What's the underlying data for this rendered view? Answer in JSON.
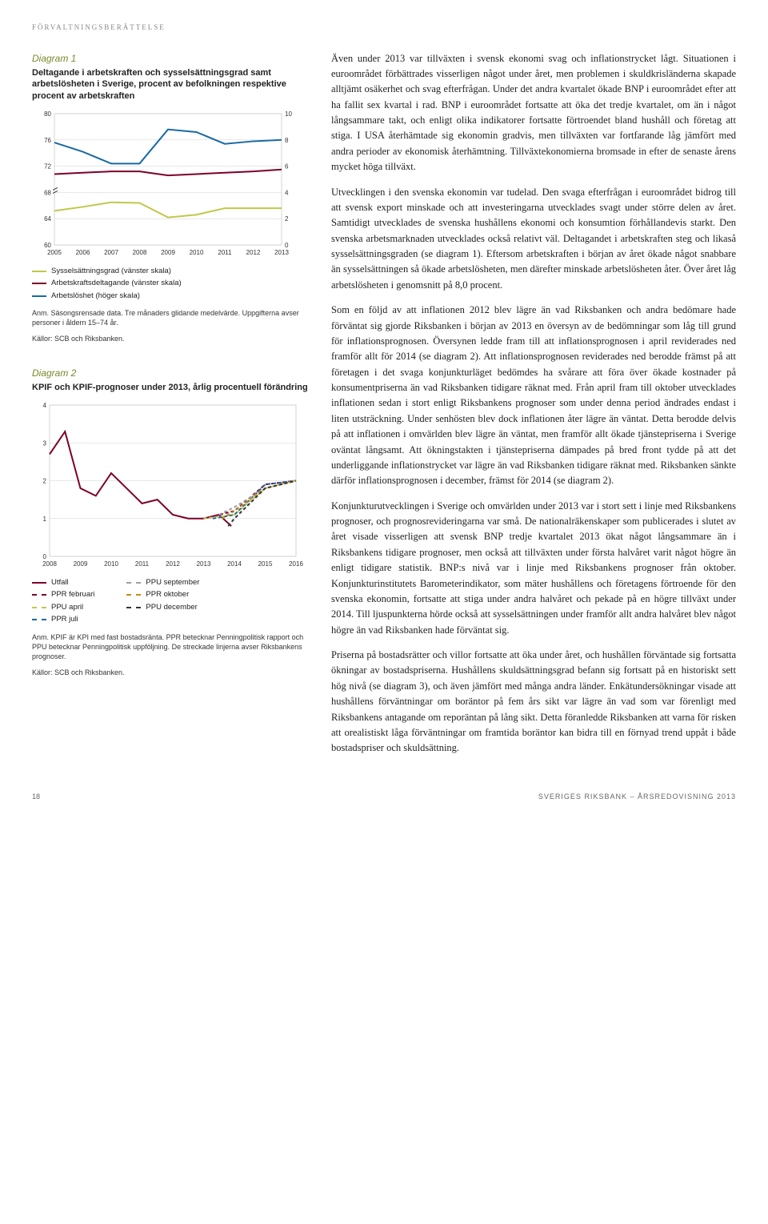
{
  "running_head": "FÖRVALTNINGSBERÄTTELSE",
  "diagram1": {
    "label": "Diagram 1",
    "title": "Deltagande i arbetskraften och sysselsättningsgrad samt arbetslösheten i Sverige, procent av befolkningen respektive procent av arbetskraften",
    "type": "line-dual-axis",
    "x": {
      "min": 2005,
      "max": 2013,
      "ticks": [
        2005,
        2006,
        2007,
        2008,
        2009,
        2010,
        2011,
        2012,
        2013
      ]
    },
    "y_left": {
      "min": 60,
      "max": 80,
      "ticks": [
        60,
        64,
        68,
        72,
        76,
        80
      ],
      "step": 4
    },
    "y_right": {
      "min": 0,
      "max": 10,
      "ticks": [
        0,
        2,
        4,
        6,
        8,
        10
      ],
      "step": 2
    },
    "background_color": "#ffffff",
    "grid_color": "#d0d0d0",
    "cutout_left": {
      "from": 66,
      "to": 70
    },
    "series": [
      {
        "name": "Sysselsättningsgrad (vänster skala)",
        "axis": "left",
        "color": "#c0c84a",
        "width": 2,
        "values": [
          [
            2005,
            65.2
          ],
          [
            2006,
            65.8
          ],
          [
            2007,
            66.5
          ],
          [
            2008,
            66.4
          ],
          [
            2009,
            64.2
          ],
          [
            2010,
            64.6
          ],
          [
            2011,
            65.6
          ],
          [
            2012,
            65.6
          ],
          [
            2013,
            65.6
          ]
        ]
      },
      {
        "name": "Arbetskraftsdeltagande (vänster skala)",
        "axis": "left",
        "color": "#7d0028",
        "width": 2,
        "values": [
          [
            2005,
            70.8
          ],
          [
            2006,
            71.0
          ],
          [
            2007,
            71.2
          ],
          [
            2008,
            71.2
          ],
          [
            2009,
            70.6
          ],
          [
            2010,
            70.8
          ],
          [
            2011,
            71.0
          ],
          [
            2012,
            71.2
          ],
          [
            2013,
            71.5
          ]
        ]
      },
      {
        "name": "Arbetslöshet (höger skala)",
        "axis": "right",
        "color": "#1a6aa3",
        "width": 2,
        "values": [
          [
            2005,
            7.8
          ],
          [
            2006,
            7.1
          ],
          [
            2007,
            6.2
          ],
          [
            2008,
            6.2
          ],
          [
            2009,
            8.8
          ],
          [
            2010,
            8.6
          ],
          [
            2011,
            7.7
          ],
          [
            2012,
            7.9
          ],
          [
            2013,
            8.0
          ]
        ]
      }
    ],
    "note": "Anm. Säsongsrensade data. Tre månaders glidande medelvärde. Uppgifterna avser personer i åldern 15–74 år.",
    "source": "Källor: SCB och Riksbanken."
  },
  "diagram2": {
    "label": "Diagram 2",
    "title": "KPIF och KPIF-prognoser under 2013, årlig procentuell förändring",
    "type": "line",
    "x": {
      "min": 2008,
      "max": 2016,
      "ticks": [
        2008,
        2009,
        2010,
        2011,
        2012,
        2013,
        2014,
        2015,
        2016
      ]
    },
    "y": {
      "min": 0,
      "max": 4,
      "ticks": [
        0,
        1,
        2,
        3,
        4
      ],
      "step": 1
    },
    "background_color": "#ffffff",
    "grid_color": "#d0d0d0",
    "series": [
      {
        "name": "Utfall",
        "style": "solid",
        "color": "#7d0028",
        "values": [
          [
            2008,
            2.7
          ],
          [
            2008.5,
            3.3
          ],
          [
            2009,
            1.8
          ],
          [
            2009.5,
            1.6
          ],
          [
            2010,
            2.2
          ],
          [
            2010.5,
            1.8
          ],
          [
            2011,
            1.4
          ],
          [
            2011.5,
            1.5
          ],
          [
            2012,
            1.1
          ],
          [
            2012.5,
            1.0
          ],
          [
            2013,
            1.0
          ],
          [
            2013.5,
            1.1
          ],
          [
            2013.9,
            0.8
          ]
        ]
      },
      {
        "name": "PPR februari",
        "style": "dashed",
        "color": "#7d0028",
        "values": [
          [
            2013,
            1.0
          ],
          [
            2014,
            1.2
          ],
          [
            2015,
            1.9
          ],
          [
            2016,
            2.0
          ]
        ]
      },
      {
        "name": "PPU april",
        "style": "dashed",
        "color": "#c0c84a",
        "values": [
          [
            2013,
            1.0
          ],
          [
            2014,
            1.1
          ],
          [
            2015,
            1.8
          ],
          [
            2016,
            2.0
          ]
        ]
      },
      {
        "name": "PPR juli",
        "style": "dashed",
        "color": "#1a6aa3",
        "values": [
          [
            2013.3,
            1.0
          ],
          [
            2014,
            1.1
          ],
          [
            2015,
            1.9
          ],
          [
            2016,
            2.0
          ]
        ]
      },
      {
        "name": "PPU september",
        "style": "dashed",
        "color": "#9e9e9e",
        "values": [
          [
            2013.5,
            1.1
          ],
          [
            2014,
            1.3
          ],
          [
            2015,
            1.8
          ],
          [
            2016,
            2.0
          ]
        ]
      },
      {
        "name": "PPR oktober",
        "style": "dashed",
        "color": "#c68c1a",
        "values": [
          [
            2013.6,
            1.0
          ],
          [
            2014,
            1.2
          ],
          [
            2015,
            1.8
          ],
          [
            2016,
            2.0
          ]
        ]
      },
      {
        "name": "PPU december",
        "style": "dashed",
        "color": "#333333",
        "values": [
          [
            2013.8,
            0.8
          ],
          [
            2014,
            1.0
          ],
          [
            2015,
            1.8
          ],
          [
            2016,
            2.0
          ]
        ]
      }
    ],
    "note": "Anm. KPIF är KPI med fast bostadsränta. PPR betecknar Penningpolitisk rapport och PPU betecknar Penningpolitisk uppföljning. De streckade linjerna avser Riksbankens prognoser.",
    "source": "Källor: SCB och Riksbanken."
  },
  "body": {
    "p1": "Även under 2013 var tillväxten i svensk ekonomi svag och inflationstrycket lågt. Situationen i euroområdet förbättrades visserligen något under året, men problemen i skuldkrisländerna skapade alltjämt osäkerhet och svag efterfrågan. Under det andra kvartalet ökade BNP i euroområdet efter att ha fallit sex kvartal i rad. BNP i euroområdet fortsatte att öka det tredje kvartalet, om än i något långsammare takt, och enligt olika indikatorer fortsatte förtroendet bland hushåll och företag att stiga. I USA återhämtade sig ekonomin gradvis, men tillväxten var fortfarande låg jämfört med andra perioder av ekonomisk återhämtning. Tillväxtekonomierna bromsade in efter de senaste årens mycket höga tillväxt.",
    "p2": "Utvecklingen i den svenska ekonomin var tudelad. Den svaga efterfrågan i euroområdet bidrog till att svensk export minskade och att investeringarna utvecklades svagt under större delen av året. Samtidigt utvecklades de svenska hushållens ekonomi och konsumtion förhållandevis starkt. Den svenska arbetsmarknaden utvecklades också relativt väl. Deltagandet i arbetskraften steg och likaså sysselsättningsgraden (se diagram 1). Eftersom arbetskraften i början av året ökade något snabbare än sysselsättningen så ökade arbetslösheten, men därefter minskade arbetslösheten åter. Över året låg arbetslösheten i genomsnitt på 8,0 procent.",
    "p3": "Som en följd av att inflationen 2012 blev lägre än vad Riksbanken och andra bedömare hade förväntat sig gjorde Riksbanken i början av 2013 en översyn av de bedömningar som låg till grund för inflationsprognosen. Översynen ledde fram till att inflationsprognosen i april reviderades ned framför allt för 2014 (se diagram 2). Att inflationsprognosen reviderades ned berodde främst på att företagen i det svaga konjunkturläget bedömdes ha svårare att föra över ökade kostnader på konsumentpriserna än vad Riksbanken tidigare räknat med. Från april fram till oktober utvecklades inflationen sedan i stort enligt Riksbankens prognoser som under denna period ändrades endast i liten utsträckning. Under senhösten blev dock inflationen åter lägre än väntat. Detta berodde delvis på att inflationen i omvärlden blev lägre än väntat, men framför allt ökade tjänstepriserna i Sverige oväntat långsamt. Att ökningstakten i tjänstepriserna dämpades på bred front tydde på att det underliggande inflationstrycket var lägre än vad Riksbanken tidigare räknat med. Riksbanken sänkte därför inflationsprognosen i december, främst för 2014 (se diagram 2).",
    "p4": "Konjunkturutvecklingen i Sverige och omvärlden under 2013 var i stort sett i linje med Riksbankens prognoser, och prognosrevideringarna var små. De nationalräkenskaper som publicerades i slutet av året visade visserligen att svensk BNP tredje kvartalet 2013 ökat något långsammare än i Riksbankens tidigare prognoser, men också att tillväxten under första halvåret varit något högre än enligt tidigare statistik. BNP:s nivå var i linje med Riksbankens prognoser från oktober. Konjunkturinstitutets Barometerindikator, som mäter hushållens och företagens förtroende för den svenska ekonomin, fortsatte att stiga under andra halvåret och pekade på en högre tillväxt under 2014. Till ljuspunkterna hörde också att sysselsättningen under framför allt andra halvåret blev något högre än vad Riksbanken hade förväntat sig.",
    "p5": "Priserna på bostadsrätter och villor fortsatte att öka under året, och hushållen förväntade sig fortsatta ökningar av bostadspriserna. Hushållens skuldsättningsgrad befann sig fortsatt på en historiskt sett hög nivå (se diagram 3), och även jämfört med många andra länder. Enkätundersökningar visade att hushållens förväntningar om boräntor på fem års sikt var lägre än vad som var förenligt med Riksbankens antagande om reporäntan på lång sikt. Detta föranledde Riksbanken att varna för risken att orealistiskt låga förväntningar om framtida boräntor kan bidra till en förnyad trend uppåt i både bostadspriser och skuldsättning."
  },
  "footer": {
    "page": "18",
    "right": "SVERIGES RIKSBANK – ÅRSREDOVISNING 2013"
  }
}
